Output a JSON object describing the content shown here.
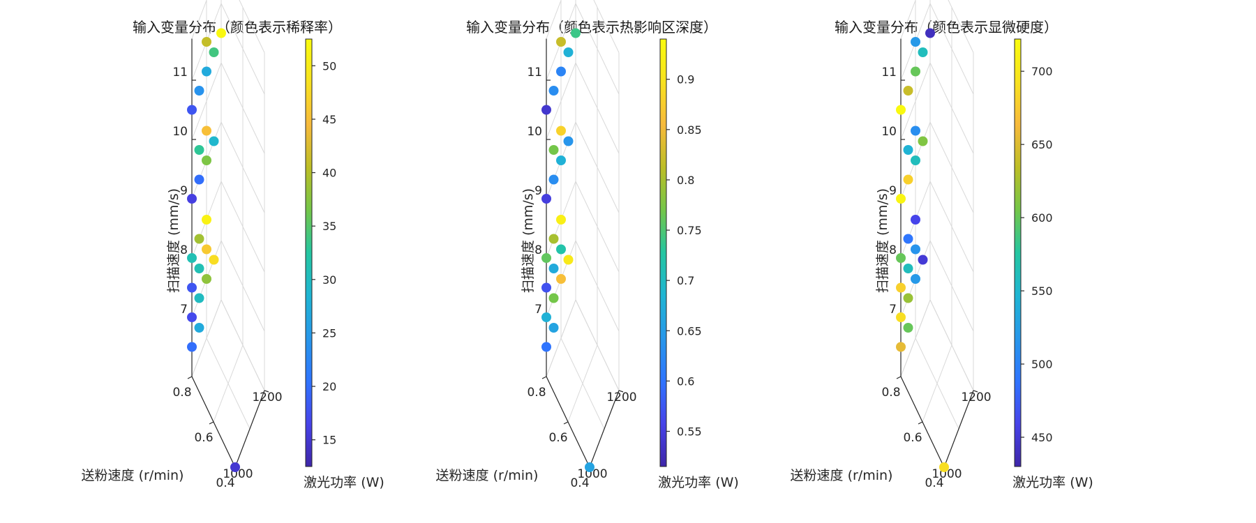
{
  "colormap": [
    "#3e26a8",
    "#4743e9",
    "#2f74fe",
    "#2797ea",
    "#1fb5d3",
    "#24c6a1",
    "#74c649",
    "#bdbe26",
    "#f7ba3c",
    "#f8e21f",
    "#f9fb0e"
  ],
  "chart_data": [
    {
      "type": "scatter3d",
      "title": "输入变量分布（颜色表示稀释率）",
      "xlabel": "送粉速度 (r/min)",
      "ylabel": "激光功率 (W)",
      "zlabel": "扫描速度 (mm/s)",
      "x_ticks": [
        "0.4",
        "0.6",
        "0.8"
      ],
      "y_ticks": [
        "1000",
        "1200"
      ],
      "z_ticks": [
        "7",
        "8",
        "9",
        "10",
        "11"
      ],
      "colorbar": {
        "range": [
          12.5,
          52.5
        ],
        "ticks": [
          15,
          20,
          25,
          30,
          35,
          40,
          45,
          50
        ]
      },
      "points": [
        {
          "x": 0.4,
          "y": 1000,
          "z": 6,
          "c": 15
        },
        {
          "x": 0.8,
          "y": 1000,
          "z": 6.5,
          "c": 20
        },
        {
          "x": 0.8,
          "y": 1050,
          "z": 6.5,
          "c": 27
        },
        {
          "x": 0.8,
          "y": 1000,
          "z": 7,
          "c": 17
        },
        {
          "x": 0.8,
          "y": 1050,
          "z": 7,
          "c": 30
        },
        {
          "x": 0.8,
          "y": 1100,
          "z": 7,
          "c": 38
        },
        {
          "x": 0.8,
          "y": 1150,
          "z": 7,
          "c": 48
        },
        {
          "x": 0.8,
          "y": 1000,
          "z": 7.5,
          "c": 18
        },
        {
          "x": 0.8,
          "y": 1050,
          "z": 7.5,
          "c": 31
        },
        {
          "x": 0.8,
          "y": 1100,
          "z": 7.5,
          "c": 46
        },
        {
          "x": 0.8,
          "y": 1000,
          "z": 8,
          "c": 31
        },
        {
          "x": 0.8,
          "y": 1050,
          "z": 8,
          "c": 39
        },
        {
          "x": 0.8,
          "y": 1100,
          "z": 8,
          "c": 51
        },
        {
          "x": 0.8,
          "y": 1000,
          "z": 9,
          "c": 16
        },
        {
          "x": 0.8,
          "y": 1050,
          "z": 9,
          "c": 20
        },
        {
          "x": 0.8,
          "y": 1100,
          "z": 9,
          "c": 37
        },
        {
          "x": 0.8,
          "y": 1150,
          "z": 9,
          "c": 29
        },
        {
          "x": 0.8,
          "y": 1050,
          "z": 9.5,
          "c": 33
        },
        {
          "x": 0.8,
          "y": 1100,
          "z": 9.5,
          "c": 45
        },
        {
          "x": 0.8,
          "y": 1000,
          "z": 10.5,
          "c": 18
        },
        {
          "x": 0.8,
          "y": 1050,
          "z": 10.5,
          "c": 24
        },
        {
          "x": 0.8,
          "y": 1100,
          "z": 10.5,
          "c": 27
        },
        {
          "x": 0.8,
          "y": 1150,
          "z": 10.5,
          "c": 34
        },
        {
          "x": 0.8,
          "y": 1200,
          "z": 10.5,
          "c": 52
        },
        {
          "x": 0.8,
          "y": 1100,
          "z": 11,
          "c": 41
        }
      ]
    },
    {
      "type": "scatter3d",
      "title": "输入变量分布（颜色表示热影响区深度）",
      "xlabel": "送粉速度 (r/min)",
      "ylabel": "激光功率 (W)",
      "zlabel": "扫描速度 (mm/s)",
      "x_ticks": [
        "0.4",
        "0.6",
        "0.8"
      ],
      "y_ticks": [
        "1000",
        "1200"
      ],
      "z_ticks": [
        "7",
        "8",
        "9",
        "10",
        "11"
      ],
      "colorbar": {
        "range": [
          0.515,
          0.94
        ],
        "ticks": [
          0.55,
          0.6,
          0.65,
          0.7,
          0.75,
          0.8,
          0.85,
          0.9
        ]
      },
      "points": [
        {
          "x": 0.4,
          "y": 1000,
          "z": 6,
          "c": 0.66
        },
        {
          "x": 0.8,
          "y": 1000,
          "z": 6.5,
          "c": 0.6
        },
        {
          "x": 0.8,
          "y": 1050,
          "z": 6.5,
          "c": 0.66
        },
        {
          "x": 0.8,
          "y": 1000,
          "z": 7,
          "c": 0.68
        },
        {
          "x": 0.8,
          "y": 1050,
          "z": 7,
          "c": 0.77
        },
        {
          "x": 0.8,
          "y": 1100,
          "z": 7,
          "c": 0.86
        },
        {
          "x": 0.8,
          "y": 1150,
          "z": 7,
          "c": 0.91
        },
        {
          "x": 0.8,
          "y": 1000,
          "z": 7.5,
          "c": 0.57
        },
        {
          "x": 0.8,
          "y": 1050,
          "z": 7.5,
          "c": 0.67
        },
        {
          "x": 0.8,
          "y": 1100,
          "z": 7.5,
          "c": 0.72
        },
        {
          "x": 0.8,
          "y": 1000,
          "z": 8,
          "c": 0.76
        },
        {
          "x": 0.8,
          "y": 1050,
          "z": 8,
          "c": 0.8
        },
        {
          "x": 0.8,
          "y": 1100,
          "z": 8,
          "c": 0.92
        },
        {
          "x": 0.8,
          "y": 1000,
          "z": 9,
          "c": 0.55
        },
        {
          "x": 0.8,
          "y": 1050,
          "z": 9,
          "c": 0.63
        },
        {
          "x": 0.8,
          "y": 1100,
          "z": 9,
          "c": 0.68
        },
        {
          "x": 0.8,
          "y": 1150,
          "z": 9,
          "c": 0.64
        },
        {
          "x": 0.8,
          "y": 1050,
          "z": 9.5,
          "c": 0.77
        },
        {
          "x": 0.8,
          "y": 1100,
          "z": 9.5,
          "c": 0.88
        },
        {
          "x": 0.8,
          "y": 1000,
          "z": 10.5,
          "c": 0.54
        },
        {
          "x": 0.8,
          "y": 1050,
          "z": 10.5,
          "c": 0.63
        },
        {
          "x": 0.8,
          "y": 1100,
          "z": 10.5,
          "c": 0.62
        },
        {
          "x": 0.8,
          "y": 1150,
          "z": 10.5,
          "c": 0.68
        },
        {
          "x": 0.8,
          "y": 1200,
          "z": 10.5,
          "c": 0.74
        },
        {
          "x": 0.8,
          "y": 1100,
          "z": 11,
          "c": 0.82
        }
      ]
    },
    {
      "type": "scatter3d",
      "title": "输入变量分布（颜色表示显微硬度）",
      "xlabel": "送粉速度 (r/min)",
      "ylabel": "激光功率 (W)",
      "zlabel": "扫描速度 (mm/s)",
      "x_ticks": [
        "0.4",
        "0.6",
        "0.8"
      ],
      "y_ticks": [
        "1000",
        "1200"
      ],
      "z_ticks": [
        "7",
        "8",
        "9",
        "10",
        "11"
      ],
      "colorbar": {
        "range": [
          430,
          722
        ],
        "ticks": [
          450,
          500,
          550,
          600,
          650,
          700
        ]
      },
      "points": [
        {
          "x": 0.4,
          "y": 1000,
          "z": 6,
          "c": 690
        },
        {
          "x": 0.8,
          "y": 1000,
          "z": 6.5,
          "c": 655
        },
        {
          "x": 0.8,
          "y": 1050,
          "z": 6.5,
          "c": 600
        },
        {
          "x": 0.8,
          "y": 1000,
          "z": 7,
          "c": 690
        },
        {
          "x": 0.8,
          "y": 1050,
          "z": 7,
          "c": 620
        },
        {
          "x": 0.8,
          "y": 1100,
          "z": 7,
          "c": 520
        },
        {
          "x": 0.8,
          "y": 1150,
          "z": 7,
          "c": 450
        },
        {
          "x": 0.8,
          "y": 1000,
          "z": 7.5,
          "c": 680
        },
        {
          "x": 0.8,
          "y": 1050,
          "z": 7.5,
          "c": 560
        },
        {
          "x": 0.8,
          "y": 1100,
          "z": 7.5,
          "c": 515
        },
        {
          "x": 0.8,
          "y": 1000,
          "z": 8,
          "c": 600
        },
        {
          "x": 0.8,
          "y": 1050,
          "z": 8,
          "c": 490
        },
        {
          "x": 0.8,
          "y": 1100,
          "z": 8,
          "c": 460
        },
        {
          "x": 0.8,
          "y": 1000,
          "z": 9,
          "c": 715
        },
        {
          "x": 0.8,
          "y": 1050,
          "z": 9,
          "c": 680
        },
        {
          "x": 0.8,
          "y": 1100,
          "z": 9,
          "c": 560
        },
        {
          "x": 0.8,
          "y": 1150,
          "z": 9,
          "c": 610
        },
        {
          "x": 0.8,
          "y": 1050,
          "z": 9.5,
          "c": 545
        },
        {
          "x": 0.8,
          "y": 1100,
          "z": 9.5,
          "c": 510
        },
        {
          "x": 0.8,
          "y": 1000,
          "z": 10.5,
          "c": 720
        },
        {
          "x": 0.8,
          "y": 1050,
          "z": 10.5,
          "c": 640
        },
        {
          "x": 0.8,
          "y": 1100,
          "z": 10.5,
          "c": 600
        },
        {
          "x": 0.8,
          "y": 1150,
          "z": 10.5,
          "c": 560
        },
        {
          "x": 0.8,
          "y": 1200,
          "z": 10.5,
          "c": 440
        },
        {
          "x": 0.8,
          "y": 1100,
          "z": 11,
          "c": 520
        }
      ]
    }
  ]
}
